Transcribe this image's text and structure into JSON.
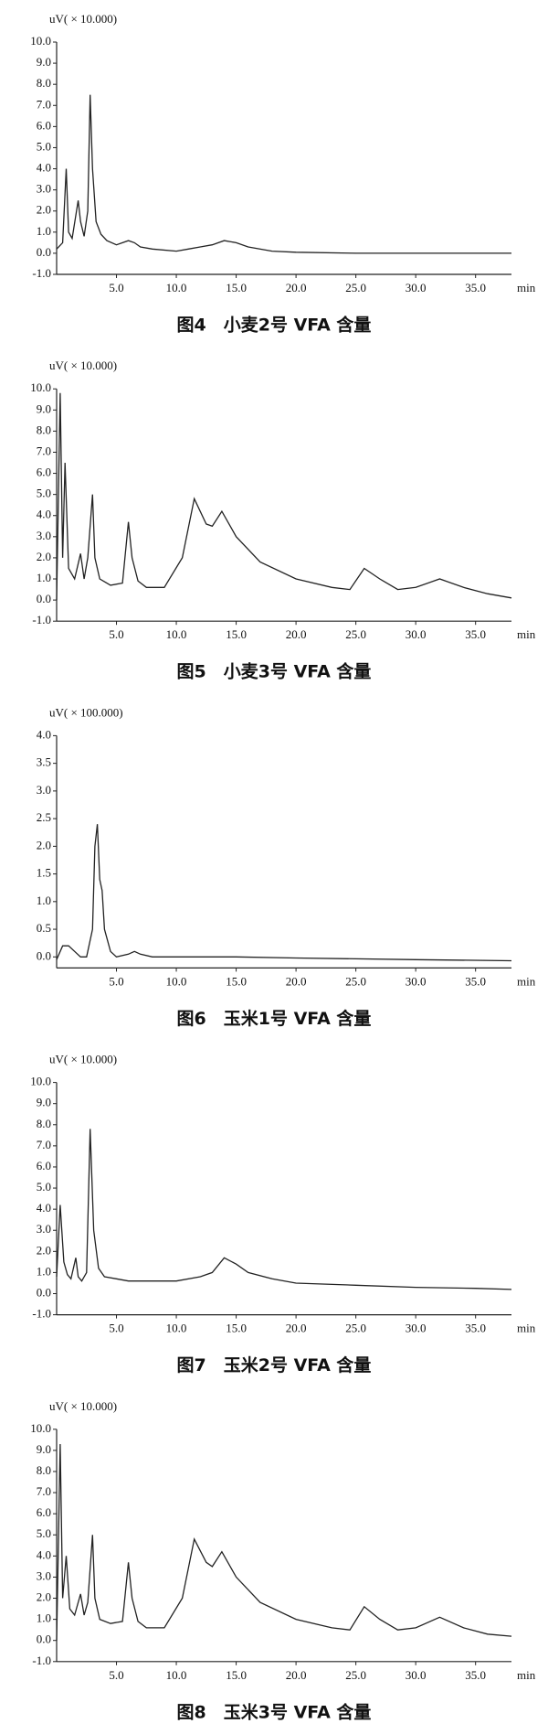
{
  "chart_data": [
    {
      "type": "line",
      "caption": "图4　小麦2号 VFA 含量",
      "y_label": "uV( × 10.000)",
      "x_label": "min",
      "color": "#222",
      "xlim": [
        0,
        38
      ],
      "ylim": [
        -1,
        10
      ],
      "xticks": [
        {
          "value": 5,
          "label": "5.0"
        },
        {
          "value": 10,
          "label": "10.0"
        },
        {
          "value": 15,
          "label": "15.0"
        },
        {
          "value": 20,
          "label": "20.0"
        },
        {
          "value": 25,
          "label": "25.0"
        },
        {
          "value": 30,
          "label": "30.0"
        },
        {
          "value": 35,
          "label": "35.0"
        }
      ],
      "yticks": [
        {
          "value": -1,
          "label": "-1.0"
        },
        {
          "value": 0,
          "label": "0.0"
        },
        {
          "value": 1,
          "label": "1.0"
        },
        {
          "value": 2,
          "label": "2.0"
        },
        {
          "value": 3,
          "label": "3.0"
        },
        {
          "value": 4,
          "label": "4.0"
        },
        {
          "value": 5,
          "label": "5.0"
        },
        {
          "value": 6,
          "label": "6.0"
        },
        {
          "value": 7,
          "label": "7.0"
        },
        {
          "value": 8,
          "label": "8.0"
        },
        {
          "value": 9,
          "label": "9.0"
        },
        {
          "value": 10,
          "label": "10.0"
        }
      ],
      "x": [
        0,
        0.5,
        0.8,
        1.0,
        1.3,
        1.8,
        2.0,
        2.3,
        2.6,
        2.8,
        3.0,
        3.3,
        3.7,
        4.2,
        5,
        6,
        6.5,
        7,
        8,
        10,
        11,
        12,
        13,
        14,
        15,
        16,
        18,
        20,
        25,
        30,
        35,
        38
      ],
      "values": [
        0.2,
        0.5,
        4.0,
        1.0,
        0.7,
        2.5,
        1.5,
        0.8,
        2.0,
        7.5,
        4.0,
        1.5,
        0.9,
        0.6,
        0.4,
        0.6,
        0.5,
        0.3,
        0.2,
        0.1,
        0.2,
        0.3,
        0.4,
        0.6,
        0.5,
        0.3,
        0.1,
        0.05,
        0,
        0,
        0,
        0
      ]
    },
    {
      "type": "line",
      "caption": "图5　小麦3号 VFA 含量",
      "y_label": "uV( × 10.000)",
      "x_label": "min",
      "color": "#222",
      "xlim": [
        0,
        38
      ],
      "ylim": [
        -1,
        10
      ],
      "xticks": [
        {
          "value": 5,
          "label": "5.0"
        },
        {
          "value": 10,
          "label": "10.0"
        },
        {
          "value": 15,
          "label": "15.0"
        },
        {
          "value": 20,
          "label": "20.0"
        },
        {
          "value": 25,
          "label": "25.0"
        },
        {
          "value": 30,
          "label": "30.0"
        },
        {
          "value": 35,
          "label": "35.0"
        }
      ],
      "yticks": [
        {
          "value": -1,
          "label": "-1.0"
        },
        {
          "value": 0,
          "label": "0.0"
        },
        {
          "value": 1,
          "label": "1.0"
        },
        {
          "value": 2,
          "label": "2.0"
        },
        {
          "value": 3,
          "label": "3.0"
        },
        {
          "value": 4,
          "label": "4.0"
        },
        {
          "value": 5,
          "label": "5.0"
        },
        {
          "value": 6,
          "label": "6.0"
        },
        {
          "value": 7,
          "label": "7.0"
        },
        {
          "value": 8,
          "label": "8.0"
        },
        {
          "value": 9,
          "label": "9.0"
        },
        {
          "value": 10,
          "label": "10.0"
        }
      ],
      "x": [
        0,
        0.3,
        0.5,
        0.7,
        1.0,
        1.5,
        2.0,
        2.3,
        2.6,
        3.0,
        3.2,
        3.6,
        4.5,
        5.5,
        6.0,
        6.3,
        6.8,
        7.5,
        9,
        10.5,
        11.5,
        12.5,
        13.0,
        13.8,
        15,
        17,
        20,
        23,
        24.5,
        25.7,
        27,
        28.5,
        30,
        32,
        34,
        36,
        38
      ],
      "values": [
        0,
        9.8,
        2,
        6.5,
        1.5,
        1.0,
        2.2,
        1.0,
        2.0,
        5.0,
        2.0,
        1.0,
        0.7,
        0.8,
        3.7,
        2.0,
        0.9,
        0.6,
        0.6,
        2.0,
        4.8,
        3.6,
        3.5,
        4.2,
        3.0,
        1.8,
        1.0,
        0.6,
        0.5,
        1.5,
        1.0,
        0.5,
        0.6,
        1.0,
        0.6,
        0.3,
        0.1
      ]
    },
    {
      "type": "line",
      "caption": "图6　玉米1号 VFA 含量",
      "y_label": "uV( × 100.000)",
      "x_label": "min",
      "color": "#222",
      "xlim": [
        0,
        38
      ],
      "ylim": [
        -0.2,
        4
      ],
      "xticks": [
        {
          "value": 5,
          "label": "5.0"
        },
        {
          "value": 10,
          "label": "10.0"
        },
        {
          "value": 15,
          "label": "15.0"
        },
        {
          "value": 20,
          "label": "20.0"
        },
        {
          "value": 25,
          "label": "25.0"
        },
        {
          "value": 30,
          "label": "30.0"
        },
        {
          "value": 35,
          "label": "35.0"
        }
      ],
      "yticks": [
        {
          "value": 0,
          "label": "0.0"
        },
        0.5,
        {
          "value": 1,
          "label": "1.0"
        },
        1.5,
        {
          "value": 2,
          "label": "2.0"
        },
        2.5,
        {
          "value": 3,
          "label": "3.0"
        },
        3.5,
        {
          "value": 4,
          "label": "4.0"
        }
      ],
      "x": [
        0,
        0.5,
        1,
        1.5,
        2,
        2.5,
        3,
        3.2,
        3.4,
        3.6,
        3.8,
        4,
        4.5,
        5,
        6,
        6.5,
        7,
        8,
        10,
        15,
        20,
        30,
        38
      ],
      "values": [
        -0.05,
        0.2,
        0.2,
        0.1,
        0,
        0,
        0.5,
        2.0,
        2.4,
        1.4,
        1.2,
        0.5,
        0.1,
        0,
        0.05,
        0.1,
        0.05,
        0,
        0,
        0,
        -0.02,
        -0.05,
        -0.07
      ]
    },
    {
      "type": "line",
      "caption": "图7　玉米2号 VFA 含量",
      "y_label": "uV( × 10.000)",
      "x_label": "min",
      "color": "#222",
      "xlim": [
        0,
        38
      ],
      "ylim": [
        -1,
        10
      ],
      "xticks": [
        {
          "value": 5,
          "label": "5.0"
        },
        {
          "value": 10,
          "label": "10.0"
        },
        {
          "value": 15,
          "label": "15.0"
        },
        {
          "value": 20,
          "label": "20.0"
        },
        {
          "value": 25,
          "label": "25.0"
        },
        {
          "value": 30,
          "label": "30.0"
        },
        {
          "value": 35,
          "label": "35.0"
        }
      ],
      "yticks": [
        {
          "value": -1,
          "label": "-1.0"
        },
        {
          "value": 0,
          "label": "0.0"
        },
        {
          "value": 1,
          "label": "1.0"
        },
        {
          "value": 2,
          "label": "2.0"
        },
        {
          "value": 3,
          "label": "3.0"
        },
        {
          "value": 4,
          "label": "4.0"
        },
        {
          "value": 5,
          "label": "5.0"
        },
        {
          "value": 6,
          "label": "6.0"
        },
        {
          "value": 7,
          "label": "7.0"
        },
        {
          "value": 8,
          "label": "8.0"
        },
        {
          "value": 9,
          "label": "9.0"
        },
        {
          "value": 10,
          "label": "10.0"
        }
      ],
      "x": [
        0,
        0.3,
        0.6,
        0.9,
        1.2,
        1.6,
        1.8,
        2.1,
        2.5,
        2.8,
        3.1,
        3.5,
        4,
        5,
        6,
        7,
        8,
        10,
        12,
        13,
        14,
        15,
        16,
        18,
        20,
        25,
        30,
        35,
        38
      ],
      "values": [
        0.8,
        4.2,
        1.5,
        0.9,
        0.7,
        1.7,
        0.8,
        0.6,
        1.0,
        7.8,
        3.0,
        1.2,
        0.8,
        0.7,
        0.6,
        0.6,
        0.6,
        0.6,
        0.8,
        1.0,
        1.7,
        1.4,
        1.0,
        0.7,
        0.5,
        0.4,
        0.3,
        0.25,
        0.2
      ]
    },
    {
      "type": "line",
      "caption": "图8　玉米3号 VFA 含量",
      "y_label": "uV( × 10.000)",
      "x_label": "min",
      "color": "#222",
      "xlim": [
        0,
        38
      ],
      "ylim": [
        -1,
        10
      ],
      "xticks": [
        {
          "value": 5,
          "label": "5.0"
        },
        {
          "value": 10,
          "label": "10.0"
        },
        {
          "value": 15,
          "label": "15.0"
        },
        {
          "value": 20,
          "label": "20.0"
        },
        {
          "value": 25,
          "label": "25.0"
        },
        {
          "value": 30,
          "label": "30.0"
        },
        {
          "value": 35,
          "label": "35.0"
        }
      ],
      "yticks": [
        {
          "value": -1,
          "label": "-1.0"
        },
        {
          "value": 0,
          "label": "0.0"
        },
        {
          "value": 1,
          "label": "1.0"
        },
        {
          "value": 2,
          "label": "2.0"
        },
        {
          "value": 3,
          "label": "3.0"
        },
        {
          "value": 4,
          "label": "4.0"
        },
        {
          "value": 5,
          "label": "5.0"
        },
        {
          "value": 6,
          "label": "6.0"
        },
        {
          "value": 7,
          "label": "7.0"
        },
        {
          "value": 8,
          "label": "8.0"
        },
        {
          "value": 9,
          "label": "9.0"
        },
        {
          "value": 10,
          "label": "10.0"
        }
      ],
      "x": [
        0,
        0.3,
        0.5,
        0.8,
        1.1,
        1.5,
        2.0,
        2.3,
        2.6,
        3.0,
        3.2,
        3.6,
        4.5,
        5.5,
        6.0,
        6.3,
        6.8,
        7.5,
        9,
        10.5,
        11.5,
        12.5,
        13.0,
        13.8,
        15,
        17,
        20,
        23,
        24.5,
        25.7,
        27,
        28.5,
        30,
        32,
        34,
        36,
        38
      ],
      "values": [
        0,
        9.3,
        2,
        4.0,
        1.5,
        1.2,
        2.2,
        1.2,
        1.8,
        5.0,
        2.0,
        1.0,
        0.8,
        0.9,
        3.7,
        2.0,
        0.9,
        0.6,
        0.6,
        2.0,
        4.8,
        3.7,
        3.5,
        4.2,
        3.0,
        1.8,
        1.0,
        0.6,
        0.5,
        1.6,
        1.0,
        0.5,
        0.6,
        1.1,
        0.6,
        0.3,
        0.2
      ]
    }
  ]
}
